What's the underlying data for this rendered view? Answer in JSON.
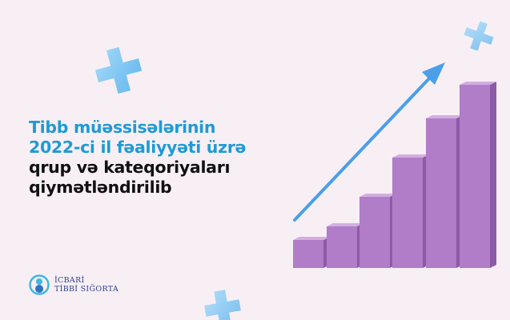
{
  "headline": {
    "line1": "Tibb müəssisələrinin",
    "line2": "2022-ci il fəaliyyəti üzrə",
    "line3": "qrup və kateqoriyaları",
    "line4": "qiymətləndirilib"
  },
  "logo": {
    "line1": "İCBARİ",
    "line2": "TİBBİ SIĞORTA"
  },
  "colors": {
    "background": "#f8eff5",
    "accent_blue": "#1e9ad6",
    "bars": "#b07cc6",
    "arrow": "#4a9fe8",
    "cross": "#8fcdf5"
  },
  "icons": [
    "medical-cross-icon",
    "growth-arrow-icon",
    "logo-icon"
  ]
}
